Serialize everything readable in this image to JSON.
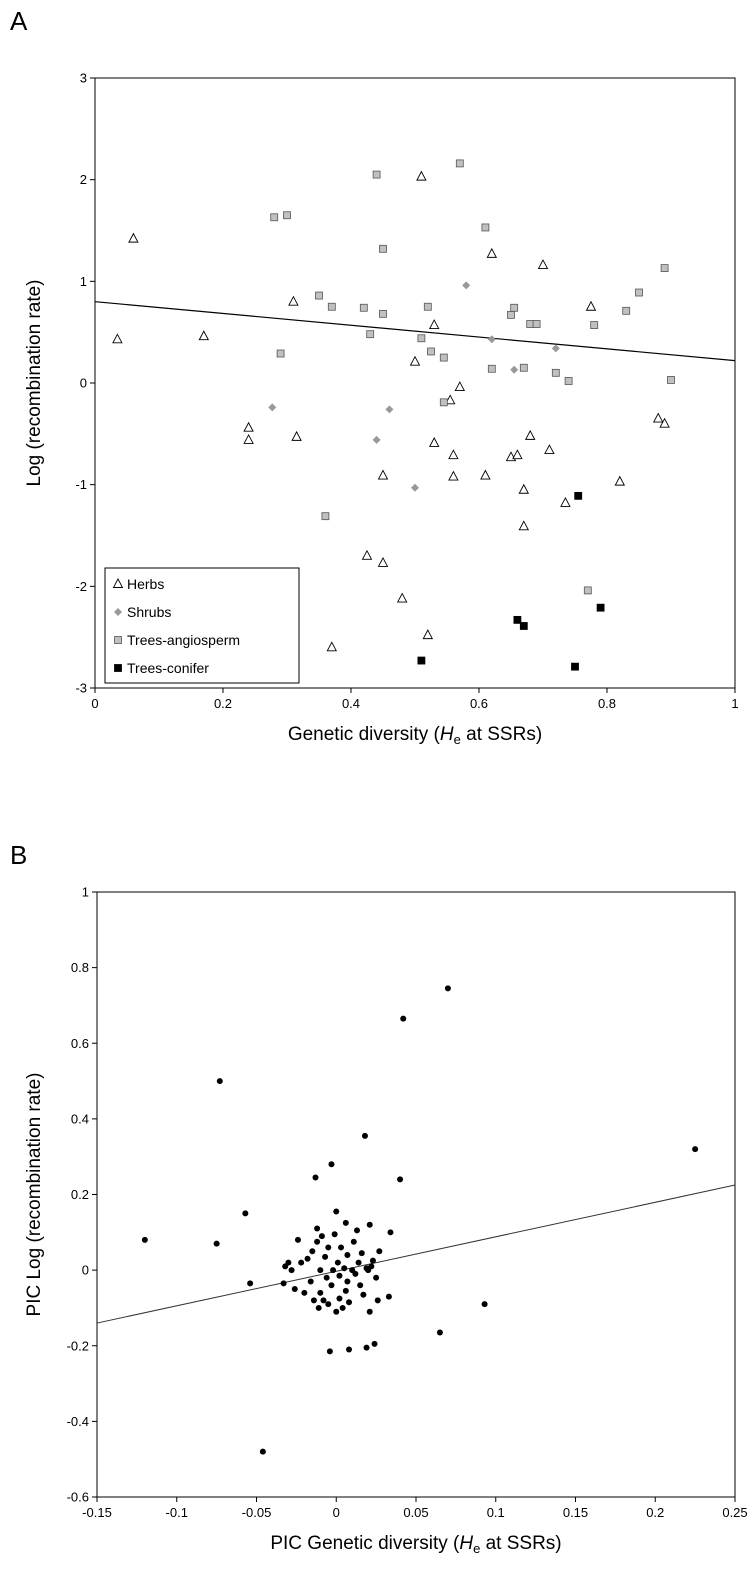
{
  "panels": {
    "a": "A",
    "b": "B"
  },
  "chart_data": [
    {
      "type": "scatter",
      "panel": "A",
      "xlabel": "Genetic diversity (He at SSRs)",
      "xlabel_parts": {
        "prefix": "Genetic diversity (",
        "italic": "H",
        "sub": "e",
        "suffix": " at SSRs)"
      },
      "ylabel": "Log (recombination rate)",
      "xlim": [
        0,
        1
      ],
      "ylim": [
        -3,
        3
      ],
      "xticks": [
        "0",
        "0.2",
        "0.4",
        "0.6",
        "0.8",
        "1"
      ],
      "yticks": [
        "-3",
        "-2",
        "-1",
        "0",
        "1",
        "2",
        "3"
      ],
      "legend_placement": "bottom-left",
      "trendline": {
        "x": [
          0,
          1
        ],
        "y": [
          0.8,
          0.22
        ]
      },
      "series": [
        {
          "name": "Herbs",
          "marker": "triangle",
          "color": "#ffffff",
          "points": [
            [
              0.035,
              0.43
            ],
            [
              0.06,
              1.42
            ],
            [
              0.17,
              0.46
            ],
            [
              0.24,
              -0.44
            ],
            [
              0.24,
              -0.56
            ],
            [
              0.31,
              0.8
            ],
            [
              0.315,
              -0.53
            ],
            [
              0.37,
              -2.6
            ],
            [
              0.425,
              -1.7
            ],
            [
              0.45,
              -1.77
            ],
            [
              0.45,
              -0.91
            ],
            [
              0.48,
              -2.12
            ],
            [
              0.5,
              0.21
            ],
            [
              0.51,
              2.03
            ],
            [
              0.52,
              -2.48
            ],
            [
              0.53,
              0.57
            ],
            [
              0.53,
              -0.59
            ],
            [
              0.555,
              -0.17
            ],
            [
              0.56,
              -0.71
            ],
            [
              0.56,
              -0.92
            ],
            [
              0.57,
              -0.04
            ],
            [
              0.61,
              -0.91
            ],
            [
              0.62,
              1.27
            ],
            [
              0.65,
              -0.73
            ],
            [
              0.66,
              -0.71
            ],
            [
              0.67,
              -1.05
            ],
            [
              0.67,
              -1.41
            ],
            [
              0.68,
              -0.52
            ],
            [
              0.7,
              1.16
            ],
            [
              0.71,
              -0.66
            ],
            [
              0.735,
              -1.18
            ],
            [
              0.775,
              0.75
            ],
            [
              0.82,
              -0.97
            ],
            [
              0.88,
              -0.35
            ],
            [
              0.89,
              -0.4
            ]
          ]
        },
        {
          "name": "Shrubs",
          "marker": "diamond",
          "color": "#999999",
          "points": [
            [
              0.277,
              -0.24
            ],
            [
              0.44,
              -0.56
            ],
            [
              0.46,
              -0.26
            ],
            [
              0.5,
              -1.03
            ],
            [
              0.58,
              0.96
            ],
            [
              0.62,
              0.43
            ],
            [
              0.655,
              0.13
            ],
            [
              0.72,
              0.34
            ]
          ]
        },
        {
          "name": "Trees-angiosperm",
          "marker": "square",
          "color": "#c0c0c0",
          "points": [
            [
              0.28,
              1.63
            ],
            [
              0.3,
              1.65
            ],
            [
              0.29,
              0.29
            ],
            [
              0.35,
              0.86
            ],
            [
              0.37,
              0.75
            ],
            [
              0.36,
              -1.31
            ],
            [
              0.42,
              0.74
            ],
            [
              0.43,
              0.48
            ],
            [
              0.44,
              2.05
            ],
            [
              0.45,
              1.32
            ],
            [
              0.45,
              0.68
            ],
            [
              0.51,
              0.44
            ],
            [
              0.52,
              0.75
            ],
            [
              0.525,
              0.31
            ],
            [
              0.545,
              0.25
            ],
            [
              0.545,
              -0.19
            ],
            [
              0.57,
              2.16
            ],
            [
              0.61,
              1.53
            ],
            [
              0.62,
              0.14
            ],
            [
              0.65,
              0.67
            ],
            [
              0.655,
              0.74
            ],
            [
              0.67,
              0.15
            ],
            [
              0.68,
              0.58
            ],
            [
              0.69,
              0.58
            ],
            [
              0.72,
              0.1
            ],
            [
              0.74,
              0.02
            ],
            [
              0.77,
              -2.04
            ],
            [
              0.78,
              0.57
            ],
            [
              0.83,
              0.71
            ],
            [
              0.85,
              0.89
            ],
            [
              0.89,
              1.13
            ],
            [
              0.9,
              0.03
            ]
          ]
        },
        {
          "name": "Trees-conifer",
          "marker": "square",
          "color": "#000000",
          "points": [
            [
              0.51,
              -2.73
            ],
            [
              0.66,
              -2.33
            ],
            [
              0.67,
              -2.39
            ],
            [
              0.75,
              -2.79
            ],
            [
              0.755,
              -1.11
            ],
            [
              0.79,
              -2.21
            ]
          ]
        }
      ]
    },
    {
      "type": "scatter",
      "panel": "B",
      "xlabel": "PIC Genetic diversity (He at SSRs)",
      "xlabel_parts": {
        "prefix": "PIC Genetic diversity (",
        "italic": "H",
        "sub": "e",
        "suffix": " at SSRs)"
      },
      "ylabel": "PIC Log (recombination rate)",
      "xlim": [
        -0.15,
        0.25
      ],
      "ylim": [
        -0.6,
        1
      ],
      "xticks": [
        "-0.15",
        "-0.1",
        "-0.05",
        "0",
        "0.05",
        "0.1",
        "0.15",
        "0.2",
        "0.25"
      ],
      "yticks": [
        "-0.6",
        "-0.4",
        "-0.2",
        "0",
        "0.2",
        "0.4",
        "0.6",
        "0.8",
        "1"
      ],
      "trendline": {
        "x": [
          -0.15,
          0.25
        ],
        "y": [
          -0.14,
          0.225
        ]
      },
      "series": [
        {
          "marker": "circle",
          "color": "#000000",
          "points": [
            [
              -0.12,
              0.08
            ],
            [
              -0.075,
              0.07
            ],
            [
              -0.073,
              0.5
            ],
            [
              -0.057,
              0.15
            ],
            [
              -0.054,
              -0.035
            ],
            [
              -0.046,
              -0.48
            ],
            [
              -0.033,
              -0.035
            ],
            [
              -0.032,
              0.01
            ],
            [
              -0.03,
              0.02
            ],
            [
              -0.028,
              0.0
            ],
            [
              -0.026,
              -0.05
            ],
            [
              -0.024,
              0.08
            ],
            [
              -0.022,
              0.02
            ],
            [
              -0.02,
              -0.06
            ],
            [
              -0.018,
              0.03
            ],
            [
              -0.016,
              -0.03
            ],
            [
              -0.015,
              0.05
            ],
            [
              -0.014,
              -0.08
            ],
            [
              -0.013,
              0.245
            ],
            [
              -0.012,
              0.11
            ],
            [
              -0.012,
              0.075
            ],
            [
              -0.011,
              -0.1
            ],
            [
              -0.01,
              0.0
            ],
            [
              -0.01,
              -0.06
            ],
            [
              -0.009,
              0.09
            ],
            [
              -0.008,
              -0.08
            ],
            [
              -0.007,
              0.035
            ],
            [
              -0.006,
              -0.02
            ],
            [
              -0.005,
              -0.09
            ],
            [
              -0.005,
              0.06
            ],
            [
              -0.004,
              -0.215
            ],
            [
              -0.003,
              0.28
            ],
            [
              -0.003,
              -0.04
            ],
            [
              -0.002,
              0.0
            ],
            [
              -0.001,
              0.095
            ],
            [
              0.0,
              -0.11
            ],
            [
              0.0,
              0.155
            ],
            [
              0.001,
              0.02
            ],
            [
              0.002,
              -0.015
            ],
            [
              0.002,
              -0.075
            ],
            [
              0.003,
              0.06
            ],
            [
              0.004,
              -0.1
            ],
            [
              0.005,
              0.005
            ],
            [
              0.006,
              -0.055
            ],
            [
              0.006,
              0.125
            ],
            [
              0.007,
              -0.03
            ],
            [
              0.007,
              0.04
            ],
            [
              0.008,
              -0.085
            ],
            [
              0.008,
              -0.21
            ],
            [
              0.01,
              0.0
            ],
            [
              0.011,
              0.075
            ],
            [
              0.012,
              -0.01
            ],
            [
              0.013,
              0.105
            ],
            [
              0.014,
              0.02
            ],
            [
              0.015,
              -0.04
            ],
            [
              0.016,
              0.045
            ],
            [
              0.017,
              -0.065
            ],
            [
              0.018,
              0.355
            ],
            [
              0.019,
              0.005
            ],
            [
              0.019,
              -0.205
            ],
            [
              0.02,
              0.0
            ],
            [
              0.021,
              0.12
            ],
            [
              0.021,
              -0.11
            ],
            [
              0.022,
              0.01
            ],
            [
              0.023,
              0.025
            ],
            [
              0.024,
              -0.195
            ],
            [
              0.025,
              -0.02
            ],
            [
              0.026,
              -0.08
            ],
            [
              0.027,
              0.05
            ],
            [
              0.033,
              -0.07
            ],
            [
              0.034,
              0.1
            ],
            [
              0.04,
              0.24
            ],
            [
              0.042,
              0.665
            ],
            [
              0.065,
              -0.165
            ],
            [
              0.07,
              0.745
            ],
            [
              0.093,
              -0.09
            ],
            [
              0.225,
              0.32
            ]
          ]
        }
      ]
    }
  ]
}
